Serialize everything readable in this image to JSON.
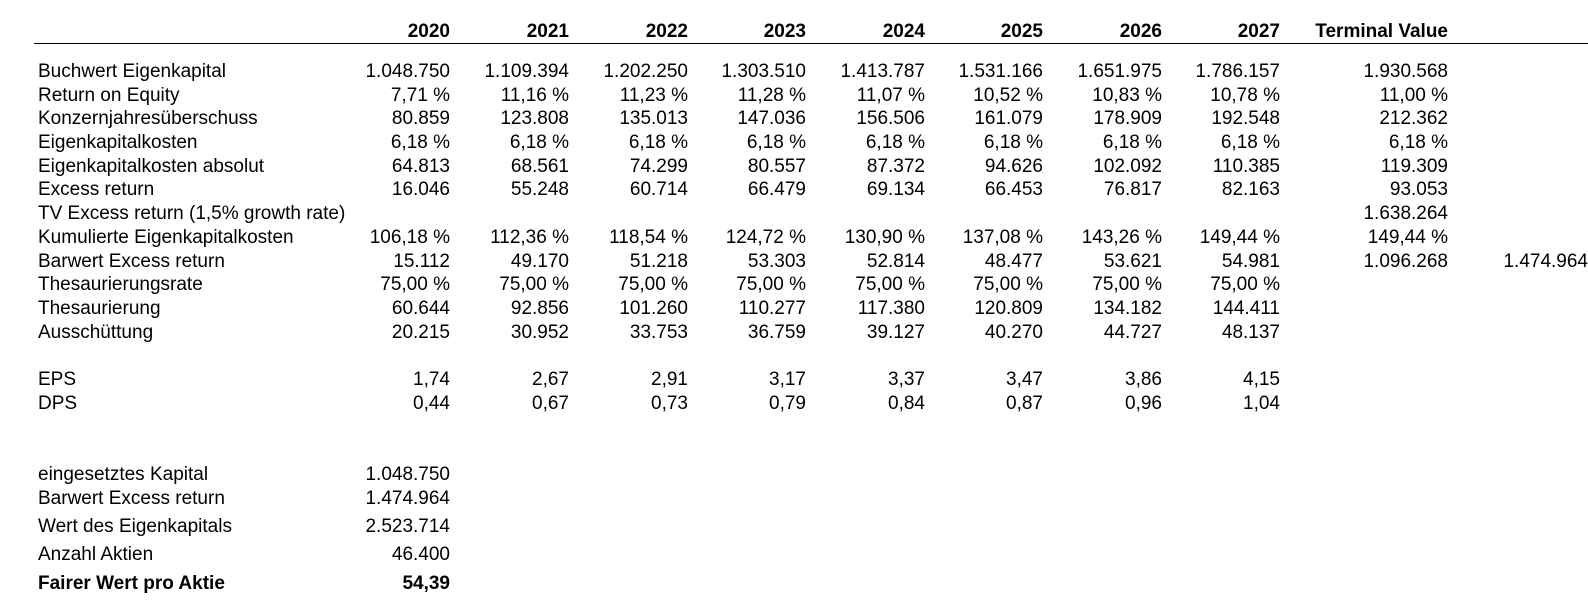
{
  "header": {
    "years": [
      "2020",
      "2021",
      "2022",
      "2023",
      "2024",
      "2025",
      "2026",
      "2027"
    ],
    "terminal_value": "Terminal Value"
  },
  "table": {
    "rows": [
      {
        "label": "Buchwert Eigenkapital",
        "values": [
          "1.048.750",
          "1.109.394",
          "1.202.250",
          "1.303.510",
          "1.413.787",
          "1.531.166",
          "1.651.975",
          "1.786.157"
        ],
        "tv": "1.930.568",
        "extra": ""
      },
      {
        "label": "Return on Equity",
        "values": [
          "7,71 %",
          "11,16 %",
          "11,23 %",
          "11,28 %",
          "11,07 %",
          "10,52 %",
          "10,83 %",
          "10,78 %"
        ],
        "tv": "11,00 %",
        "extra": ""
      },
      {
        "label": "Konzernjahresüberschuss",
        "values": [
          "80.859",
          "123.808",
          "135.013",
          "147.036",
          "156.506",
          "161.079",
          "178.909",
          "192.548"
        ],
        "tv": "212.362",
        "extra": ""
      },
      {
        "label": "Eigenkapitalkosten",
        "values": [
          "6,18 %",
          "6,18 %",
          "6,18 %",
          "6,18 %",
          "6,18 %",
          "6,18 %",
          "6,18 %",
          "6,18 %"
        ],
        "tv": "6,18 %",
        "extra": ""
      },
      {
        "label": "Eigenkapitalkosten absolut",
        "values": [
          "64.813",
          "68.561",
          "74.299",
          "80.557",
          "87.372",
          "94.626",
          "102.092",
          "110.385"
        ],
        "tv": "119.309",
        "extra": ""
      },
      {
        "label": "Excess return",
        "values": [
          "16.046",
          "55.248",
          "60.714",
          "66.479",
          "69.134",
          "66.453",
          "76.817",
          "82.163"
        ],
        "tv": "93.053",
        "extra": ""
      },
      {
        "label": "TV Excess return (1,5% growth rate)",
        "values": [
          "",
          "",
          "",
          "",
          "",
          "",
          "",
          ""
        ],
        "tv": "1.638.264",
        "extra": ""
      },
      {
        "label": "Kumulierte Eigenkapitalkosten",
        "values": [
          "106,18 %",
          "112,36 %",
          "118,54 %",
          "124,72 %",
          "130,90 %",
          "137,08 %",
          "143,26 %",
          "149,44 %"
        ],
        "tv": "149,44 %",
        "extra": ""
      },
      {
        "label": "Barwert Excess return",
        "values": [
          "15.112",
          "49.170",
          "51.218",
          "53.303",
          "52.814",
          "48.477",
          "53.621",
          "54.981"
        ],
        "tv": "1.096.268",
        "extra": "1.474.964"
      },
      {
        "label": "Thesaurierungsrate",
        "values": [
          "75,00 %",
          "75,00 %",
          "75,00 %",
          "75,00 %",
          "75,00 %",
          "75,00 %",
          "75,00 %",
          "75,00 %"
        ],
        "tv": "",
        "extra": ""
      },
      {
        "label": "Thesaurierung",
        "values": [
          "60.644",
          "92.856",
          "101.260",
          "110.277",
          "117.380",
          "120.809",
          "134.182",
          "144.411"
        ],
        "tv": "",
        "extra": ""
      },
      {
        "label": "Ausschüttung",
        "values": [
          "20.215",
          "30.952",
          "33.753",
          "36.759",
          "39.127",
          "40.270",
          "44.727",
          "48.137"
        ],
        "tv": "",
        "extra": ""
      }
    ],
    "per_share": [
      {
        "label": "EPS",
        "values": [
          "1,74",
          "2,67",
          "2,91",
          "3,17",
          "3,37",
          "3,47",
          "3,86",
          "4,15"
        ]
      },
      {
        "label": "DPS",
        "values": [
          "0,44",
          "0,67",
          "0,73",
          "0,79",
          "0,84",
          "0,87",
          "0,96",
          "1,04"
        ]
      }
    ]
  },
  "summary": [
    {
      "label": "eingesetztes Kapital",
      "value": "1.048.750"
    },
    {
      "label": "Barwert Excess return",
      "value": "1.474.964"
    },
    {
      "label": "Wert des Eigenkapitals",
      "value": "2.523.714"
    },
    {
      "label": "Anzahl Aktien",
      "value": "46.400"
    },
    {
      "label": "Fairer Wert pro Aktie",
      "value": "54,39"
    }
  ]
}
